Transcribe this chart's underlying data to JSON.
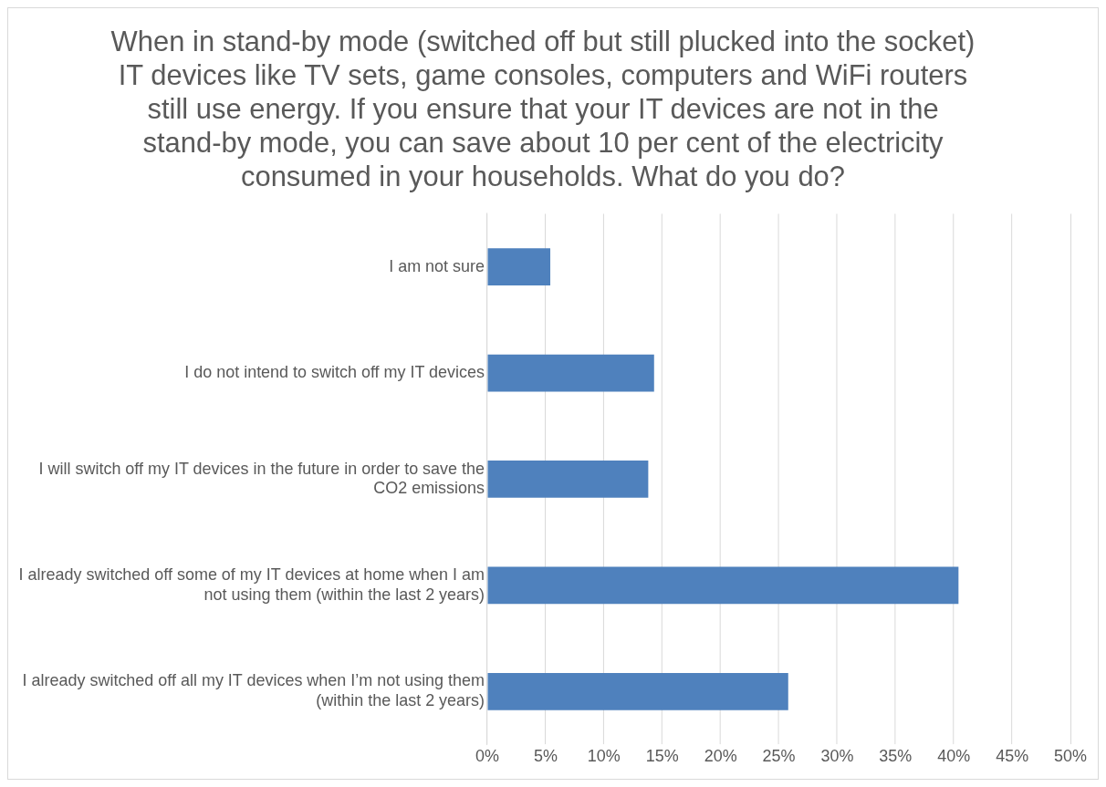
{
  "chart_data": {
    "type": "bar",
    "orientation": "horizontal",
    "title": "When in stand-by mode (switched off but still plucked into the socket) IT devices like TV sets, game consoles, computers and WiFi routers still use energy. If you ensure that your IT devices are not in the stand-by mode, you can save about 10 per cent of the electricity consumed in your households. What do you do?",
    "categories": [
      "I am not sure",
      "I do not intend to switch off my IT devices",
      "I will switch off my IT devices in the future in order to save the CO2 emissions",
      "I already switched off some of my IT devices at home when I am not using them (within the last 2 years)",
      "I already switched off all my IT devices when I’m not using them (within the last 2 years)"
    ],
    "values": [
      5.4,
      14.3,
      13.8,
      40.4,
      25.8
    ],
    "color": "#4f81bd",
    "xlim": [
      0,
      50
    ],
    "xticks": [
      {
        "value": 0,
        "label": "0%"
      },
      {
        "value": 5,
        "label": "5%"
      },
      {
        "value": 10,
        "label": "10%"
      },
      {
        "value": 15,
        "label": "15%"
      },
      {
        "value": 20,
        "label": "20%"
      },
      {
        "value": 25,
        "label": "25%"
      },
      {
        "value": 30,
        "label": "30%"
      },
      {
        "value": 35,
        "label": "35%"
      },
      {
        "value": 40,
        "label": "40%"
      },
      {
        "value": 45,
        "label": "45%"
      },
      {
        "value": 50,
        "label": "50%"
      }
    ],
    "grid": "x",
    "legend": false
  }
}
